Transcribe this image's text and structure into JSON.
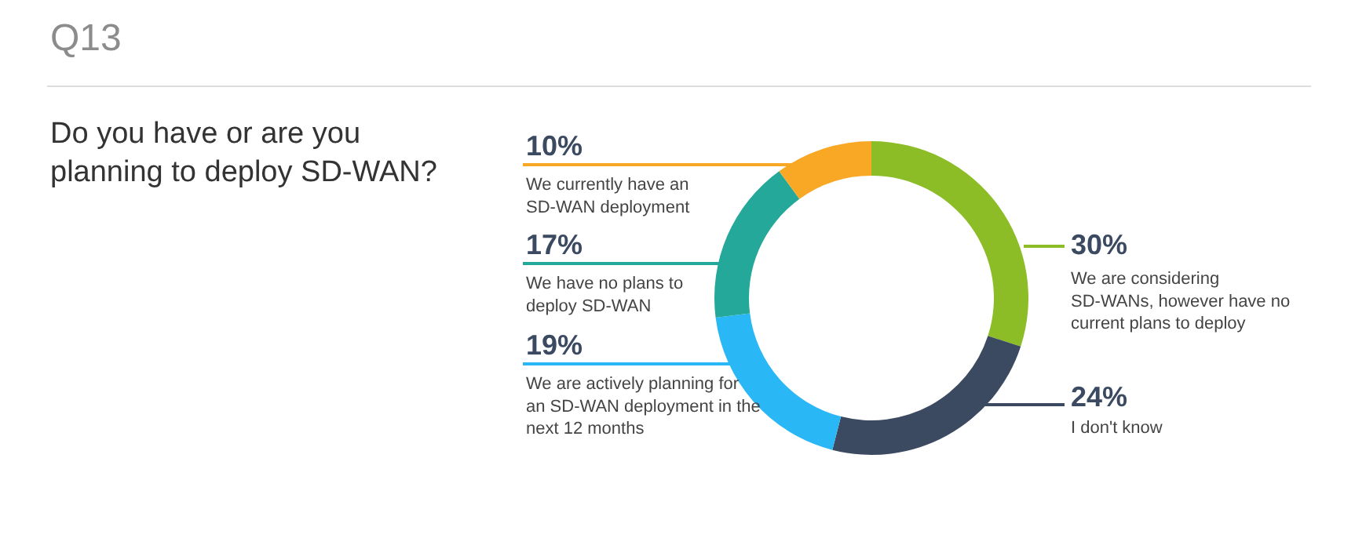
{
  "chart_data": {
    "type": "donut",
    "title": "Q13",
    "subtitle": "Do you have or are you planning to deploy SD-WAN?",
    "categories": [
      "We are considering SD-WANs, however have no current plans to deploy",
      "I don't know",
      "We are actively planning for an SD-WAN deployment in the next 12 months",
      "We have no plans to deploy SD-WAN",
      "We currently have an SD-WAN deployment"
    ],
    "values": [
      30,
      24,
      19,
      17,
      10
    ],
    "value_labels": [
      "30%",
      "24%",
      "19%",
      "17%",
      "10%"
    ],
    "colors": [
      "#8cbd26",
      "#3b4a60",
      "#2ab7f5",
      "#24a899",
      "#f9a825"
    ]
  }
}
